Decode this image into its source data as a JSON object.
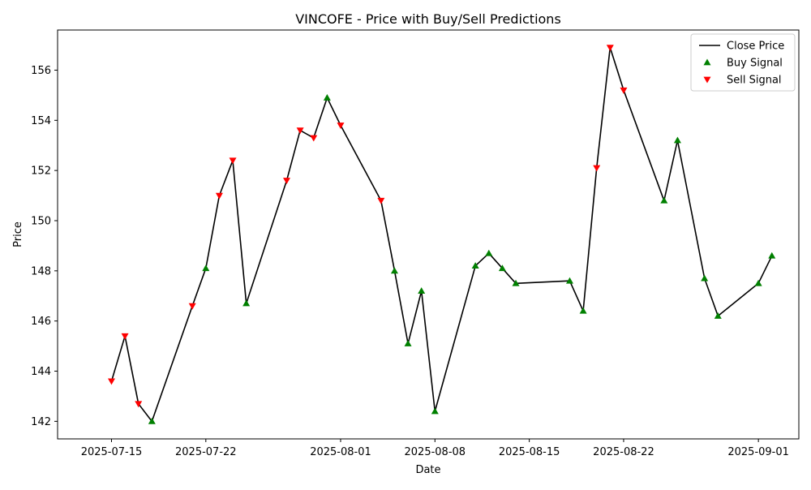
{
  "chart_data": {
    "type": "line",
    "title": "VINCOFE - Price with Buy/Sell Predictions",
    "xlabel": "Date",
    "ylabel": "Price",
    "x_range": [
      "2025-07-11",
      "2025-09-04"
    ],
    "ylim": [
      141.3,
      157.6
    ],
    "x_ticks": [
      "2025-07-15",
      "2025-07-22",
      "2025-08-01",
      "2025-08-08",
      "2025-08-15",
      "2025-08-22",
      "2025-09-01"
    ],
    "y_ticks": [
      142,
      144,
      146,
      148,
      150,
      152,
      154,
      156
    ],
    "grid": false,
    "legend_position": "top-right",
    "series": [
      {
        "name": "Close Price",
        "kind": "line",
        "color": "#000000",
        "points": [
          {
            "x": "2025-07-15",
            "y": 143.6
          },
          {
            "x": "2025-07-16",
            "y": 145.4
          },
          {
            "x": "2025-07-17",
            "y": 142.7
          },
          {
            "x": "2025-07-18",
            "y": 142.0
          },
          {
            "x": "2025-07-21",
            "y": 146.6
          },
          {
            "x": "2025-07-22",
            "y": 148.1
          },
          {
            "x": "2025-07-23",
            "y": 151.0
          },
          {
            "x": "2025-07-24",
            "y": 152.4
          },
          {
            "x": "2025-07-25",
            "y": 146.7
          },
          {
            "x": "2025-07-28",
            "y": 151.6
          },
          {
            "x": "2025-07-29",
            "y": 153.6
          },
          {
            "x": "2025-07-30",
            "y": 153.3
          },
          {
            "x": "2025-07-31",
            "y": 154.9
          },
          {
            "x": "2025-08-01",
            "y": 153.8
          },
          {
            "x": "2025-08-04",
            "y": 150.8
          },
          {
            "x": "2025-08-05",
            "y": 148.0
          },
          {
            "x": "2025-08-06",
            "y": 145.1
          },
          {
            "x": "2025-08-07",
            "y": 147.2
          },
          {
            "x": "2025-08-08",
            "y": 142.4
          },
          {
            "x": "2025-08-11",
            "y": 148.2
          },
          {
            "x": "2025-08-12",
            "y": 148.7
          },
          {
            "x": "2025-08-13",
            "y": 148.1
          },
          {
            "x": "2025-08-14",
            "y": 147.5
          },
          {
            "x": "2025-08-18",
            "y": 147.6
          },
          {
            "x": "2025-08-19",
            "y": 146.4
          },
          {
            "x": "2025-08-20",
            "y": 152.1
          },
          {
            "x": "2025-08-21",
            "y": 156.9
          },
          {
            "x": "2025-08-22",
            "y": 155.2
          },
          {
            "x": "2025-08-25",
            "y": 150.8
          },
          {
            "x": "2025-08-26",
            "y": 153.2
          },
          {
            "x": "2025-08-28",
            "y": 147.7
          },
          {
            "x": "2025-08-29",
            "y": 146.2
          },
          {
            "x": "2025-09-01",
            "y": 147.5
          },
          {
            "x": "2025-09-02",
            "y": 148.6
          }
        ]
      },
      {
        "name": "Buy Signal",
        "kind": "scatter",
        "marker": "triangle-up",
        "color": "#008000",
        "points": [
          {
            "x": "2025-07-18",
            "y": 142.0
          },
          {
            "x": "2025-07-22",
            "y": 148.1
          },
          {
            "x": "2025-07-25",
            "y": 146.7
          },
          {
            "x": "2025-07-31",
            "y": 154.9
          },
          {
            "x": "2025-08-05",
            "y": 148.0
          },
          {
            "x": "2025-08-06",
            "y": 145.1
          },
          {
            "x": "2025-08-07",
            "y": 147.2
          },
          {
            "x": "2025-08-08",
            "y": 142.4
          },
          {
            "x": "2025-08-11",
            "y": 148.2
          },
          {
            "x": "2025-08-12",
            "y": 148.7
          },
          {
            "x": "2025-08-13",
            "y": 148.1
          },
          {
            "x": "2025-08-14",
            "y": 147.5
          },
          {
            "x": "2025-08-18",
            "y": 147.6
          },
          {
            "x": "2025-08-19",
            "y": 146.4
          },
          {
            "x": "2025-08-25",
            "y": 150.8
          },
          {
            "x": "2025-08-26",
            "y": 153.2
          },
          {
            "x": "2025-08-28",
            "y": 147.7
          },
          {
            "x": "2025-08-29",
            "y": 146.2
          },
          {
            "x": "2025-09-01",
            "y": 147.5
          },
          {
            "x": "2025-09-02",
            "y": 148.6
          }
        ]
      },
      {
        "name": "Sell Signal",
        "kind": "scatter",
        "marker": "triangle-down",
        "color": "#ff0000",
        "points": [
          {
            "x": "2025-07-15",
            "y": 143.6
          },
          {
            "x": "2025-07-16",
            "y": 145.4
          },
          {
            "x": "2025-07-17",
            "y": 142.7
          },
          {
            "x": "2025-07-21",
            "y": 146.6
          },
          {
            "x": "2025-07-23",
            "y": 151.0
          },
          {
            "x": "2025-07-24",
            "y": 152.4
          },
          {
            "x": "2025-07-28",
            "y": 151.6
          },
          {
            "x": "2025-07-29",
            "y": 153.6
          },
          {
            "x": "2025-07-30",
            "y": 153.3
          },
          {
            "x": "2025-08-01",
            "y": 153.8
          },
          {
            "x": "2025-08-04",
            "y": 150.8
          },
          {
            "x": "2025-08-20",
            "y": 152.1
          },
          {
            "x": "2025-08-21",
            "y": 156.9
          },
          {
            "x": "2025-08-22",
            "y": 155.2
          }
        ]
      }
    ]
  }
}
